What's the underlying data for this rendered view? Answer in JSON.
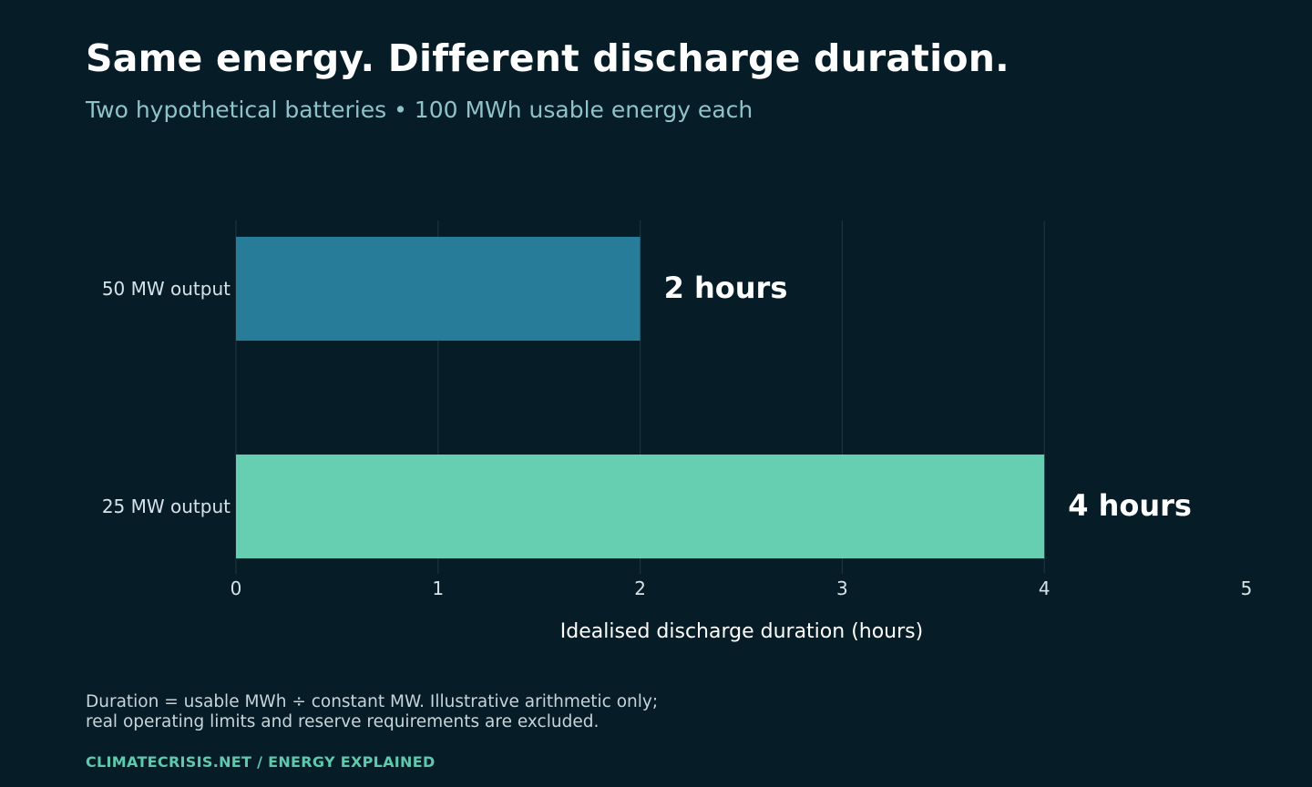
{
  "header": {
    "title": "Same energy. Different discharge duration.",
    "subtitle": "Two hypothetical batteries • 100 MWh usable energy each"
  },
  "chart_data": {
    "type": "bar",
    "orientation": "horizontal",
    "categories": [
      "50 MW output",
      "25 MW output"
    ],
    "values": [
      2,
      4
    ],
    "value_labels": [
      "2 hours",
      "4 hours"
    ],
    "colors": [
      "#277c99",
      "#66cfb2"
    ],
    "xlabel": "Idealised discharge duration (hours)",
    "xlim": [
      0,
      5
    ],
    "xticks": [
      0,
      1,
      2,
      3,
      4,
      5
    ],
    "grid": true
  },
  "footer": {
    "note_lines": [
      "Duration = usable MWh ÷ constant MW. Illustrative arithmetic only;",
      "real operating limits and reserve requirements are excluded."
    ],
    "brand": "CLIMATECRISIS.NET  /  ENERGY EXPLAINED"
  },
  "theme": {
    "background": "#061c27",
    "text": "#ffffff",
    "tick_text": "#d5e3e7",
    "grid": "#1d333d"
  }
}
